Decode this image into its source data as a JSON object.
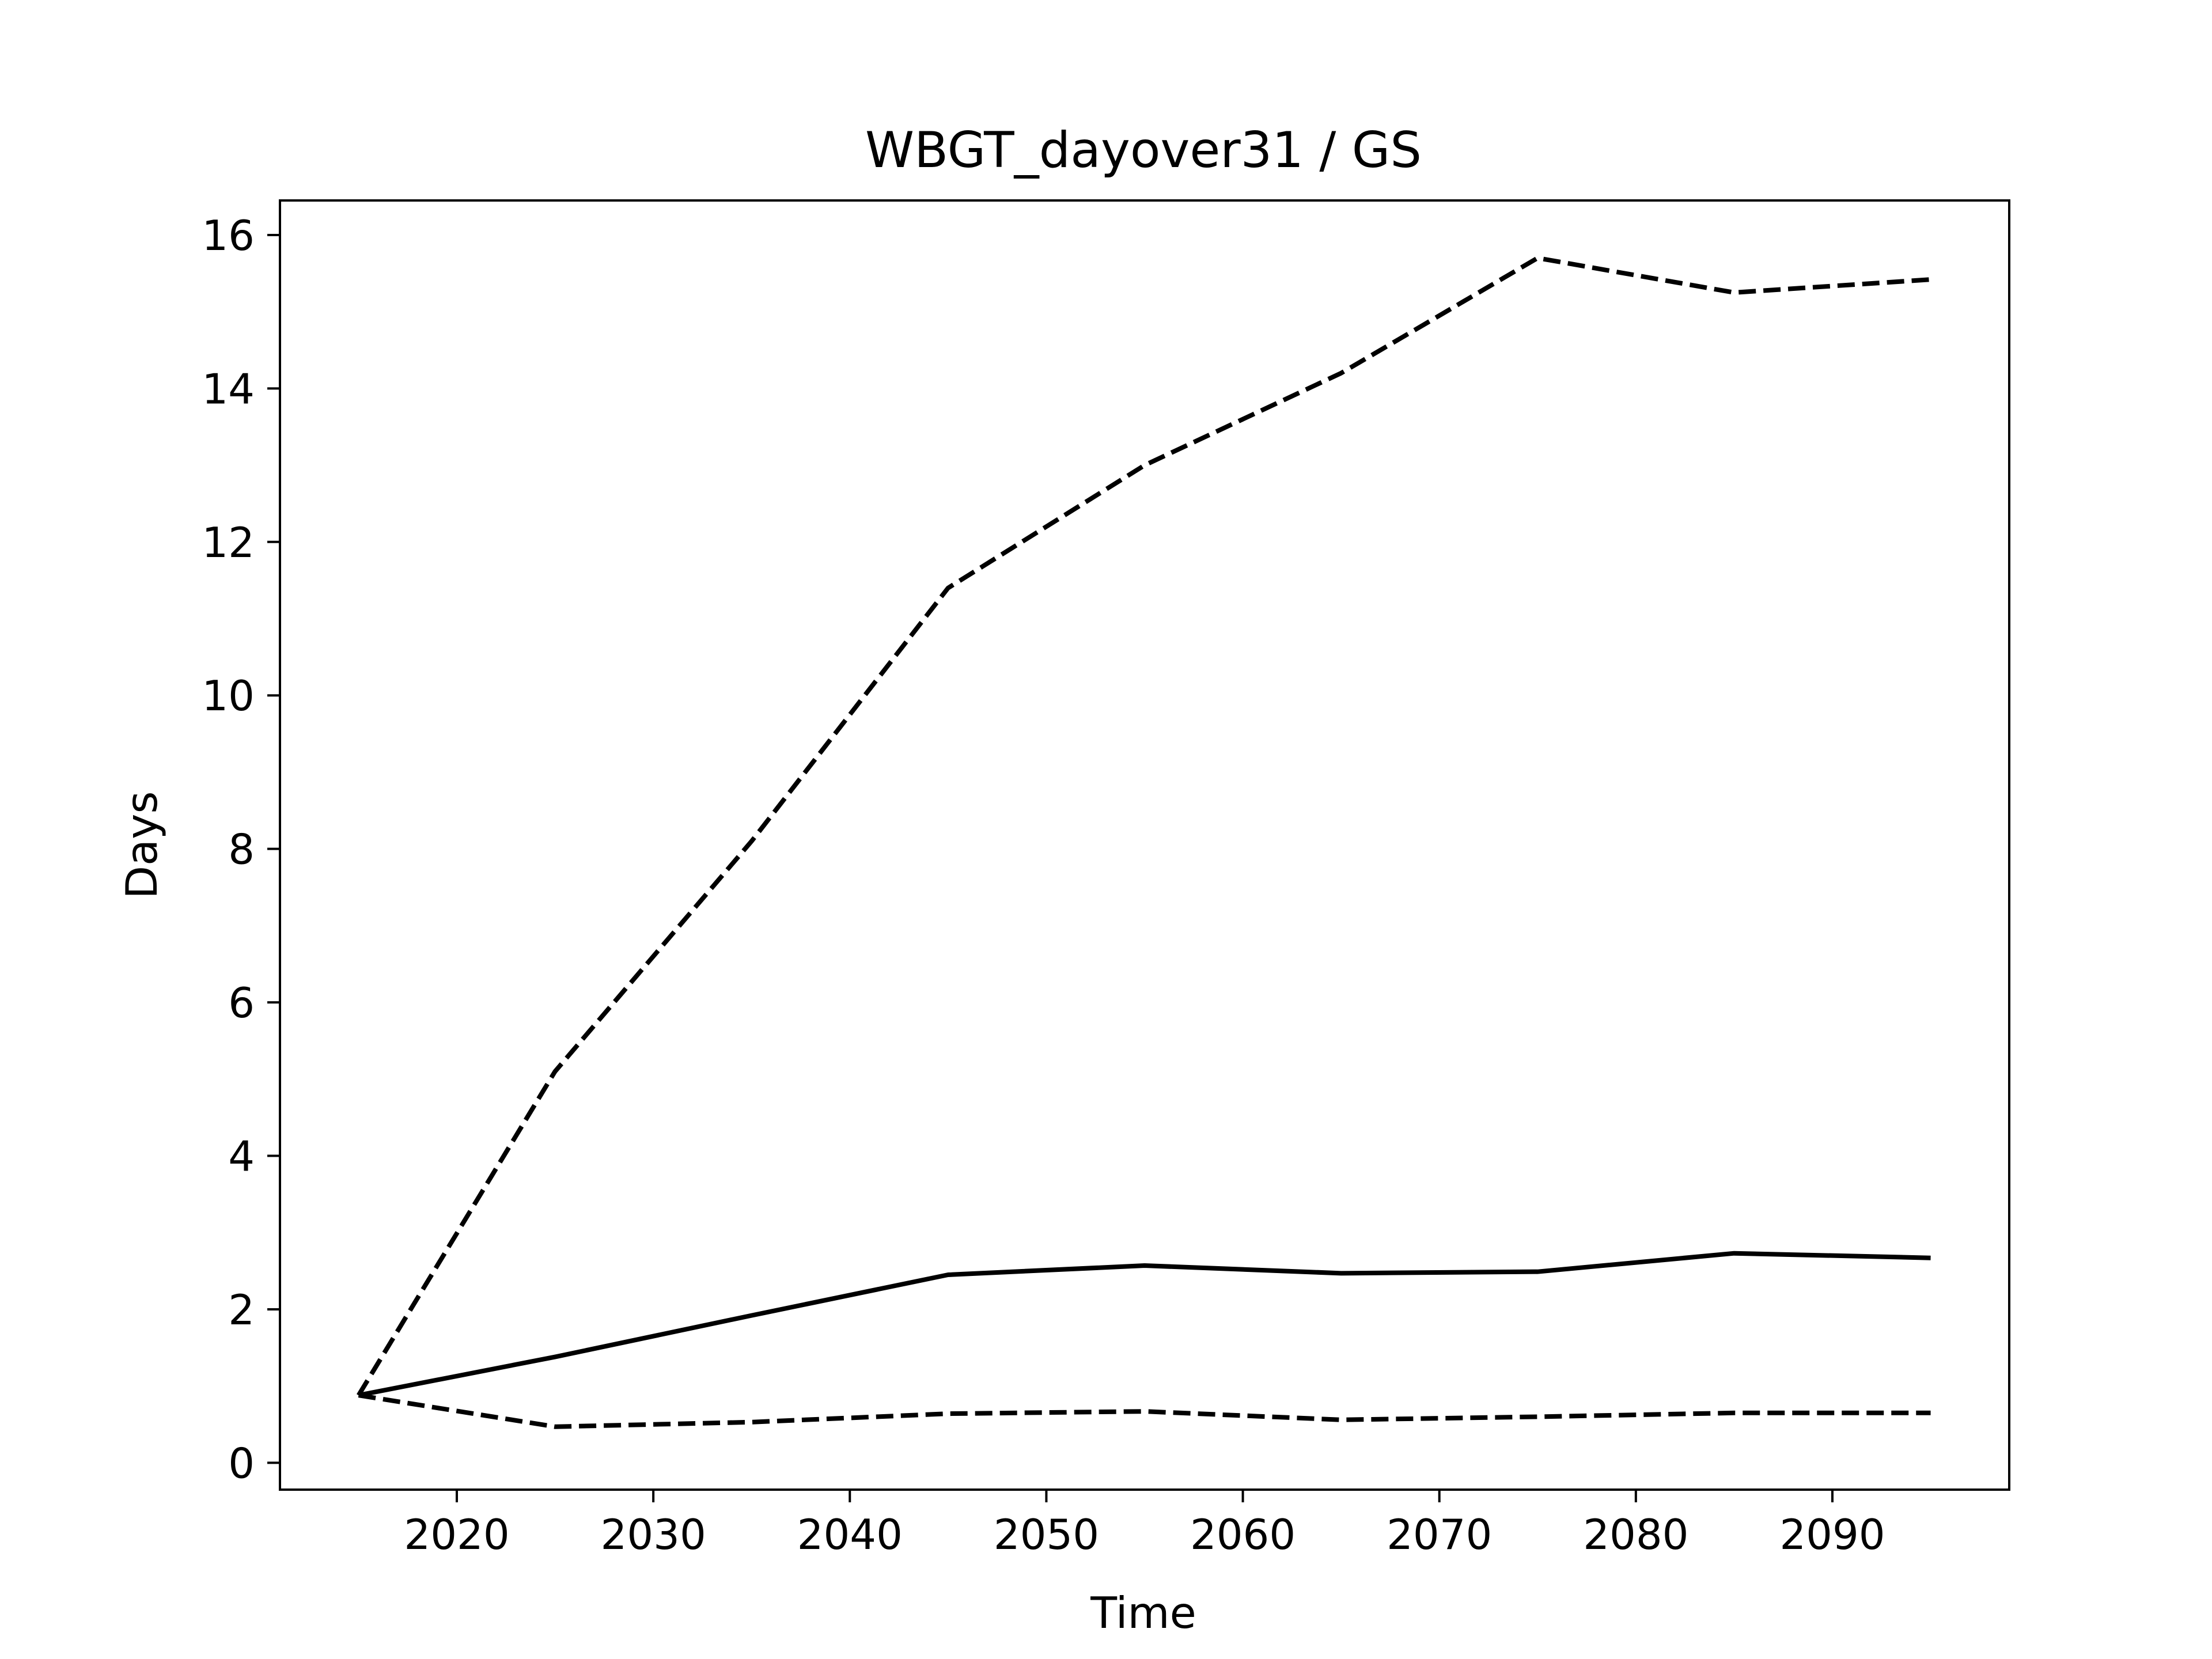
{
  "chart_data": {
    "type": "line",
    "title": "WBGT_dayover31 / GS",
    "xlabel": "Time",
    "ylabel": "Days",
    "xlim": [
      2011,
      2099
    ],
    "ylim": [
      -0.35,
      16.45
    ],
    "x_ticks": [
      2020,
      2030,
      2040,
      2050,
      2060,
      2070,
      2080,
      2090
    ],
    "y_ticks": [
      0,
      2,
      4,
      6,
      8,
      10,
      12,
      14,
      16
    ],
    "grid": false,
    "legend": "none",
    "x": [
      2015,
      2025,
      2035,
      2045,
      2055,
      2065,
      2075,
      2085,
      2095
    ],
    "series": [
      {
        "style": "solid",
        "color": "#000000",
        "values": [
          0.88,
          1.38,
          1.92,
          2.45,
          2.57,
          2.47,
          2.49,
          2.73,
          2.67
        ]
      },
      {
        "style": "dashed",
        "color": "#000000",
        "values": [
          0.88,
          5.1,
          8.1,
          11.4,
          13.0,
          14.2,
          15.7,
          15.25,
          15.42
        ]
      },
      {
        "style": "dashed",
        "color": "#000000",
        "values": [
          0.88,
          0.47,
          0.53,
          0.64,
          0.67,
          0.56,
          0.6,
          0.65,
          0.65
        ]
      }
    ]
  }
}
